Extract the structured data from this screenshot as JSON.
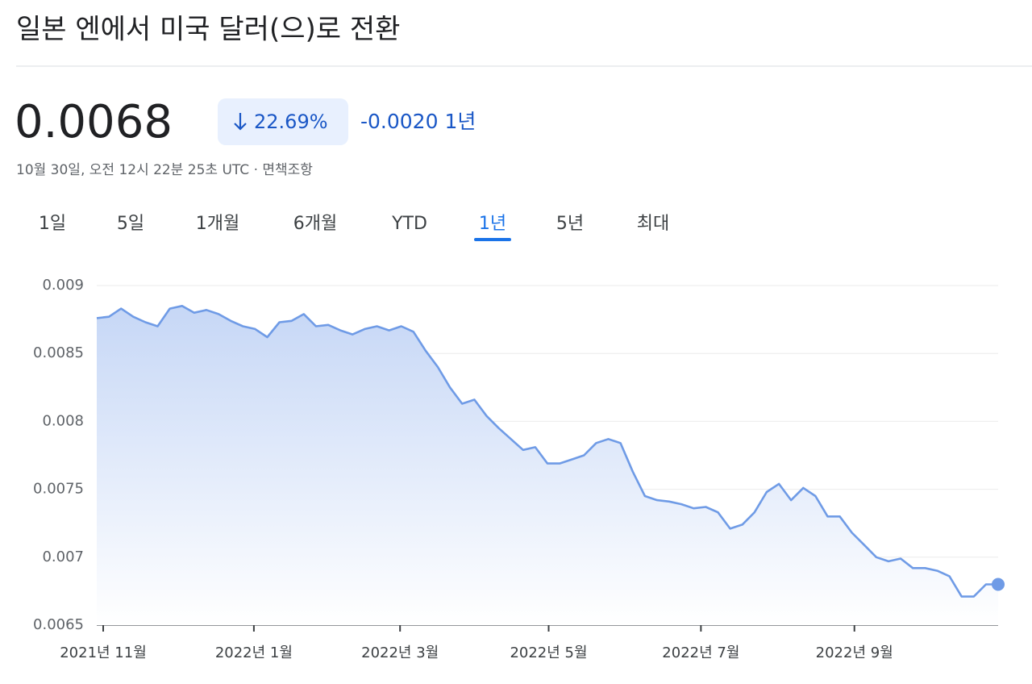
{
  "header": {
    "title": "일본 엔에서 미국 달러(으)로 전환",
    "price": "0.0068",
    "change_percent": "22.69%",
    "change_abs": "-0.0020 1년",
    "timestamp": "10월 30일, 오전 12시 22분 25초 UTC · 면책조항"
  },
  "tabs": {
    "items": [
      "1일",
      "5일",
      "1개월",
      "6개월",
      "YTD",
      "1년",
      "5년",
      "최대"
    ],
    "selected": 5
  },
  "chart_data": {
    "type": "line",
    "color": "#6f9be6",
    "values": [
      0.00876,
      0.00877,
      0.00883,
      0.00877,
      0.00873,
      0.0087,
      0.00883,
      0.00885,
      0.0088,
      0.00882,
      0.00879,
      0.00874,
      0.0087,
      0.00868,
      0.00862,
      0.00873,
      0.00874,
      0.00879,
      0.0087,
      0.00871,
      0.00867,
      0.00864,
      0.00868,
      0.0087,
      0.00867,
      0.0087,
      0.00866,
      0.00852,
      0.0084,
      0.00825,
      0.00813,
      0.00816,
      0.00804,
      0.00795,
      0.00787,
      0.00779,
      0.00781,
      0.00769,
      0.00769,
      0.00772,
      0.00775,
      0.00784,
      0.00787,
      0.00784,
      0.00763,
      0.00745,
      0.00742,
      0.00741,
      0.00739,
      0.00736,
      0.00737,
      0.00733,
      0.00721,
      0.00724,
      0.00733,
      0.00748,
      0.00754,
      0.00742,
      0.00751,
      0.00745,
      0.0073,
      0.0073,
      0.00718,
      0.00709,
      0.007,
      0.00697,
      0.00699,
      0.00692,
      0.00692,
      0.0069,
      0.00686,
      0.00671,
      0.00671,
      0.0068,
      0.0068
    ],
    "xlim": [
      0,
      74
    ],
    "xticks": [
      {
        "value": 0.53,
        "label": "2021년 11월"
      },
      {
        "value": 12.9,
        "label": "2022년 1월"
      },
      {
        "value": 24.9,
        "label": "2022년 3월"
      },
      {
        "value": 37.1,
        "label": "2022년 5월"
      },
      {
        "value": 49.6,
        "label": "2022년 7월"
      },
      {
        "value": 62.2,
        "label": "2022년 9월"
      }
    ],
    "ylim": [
      0.0065,
      0.009
    ],
    "yticks": [
      0.0065,
      0.007,
      0.0075,
      0.008,
      0.0085,
      0.009
    ],
    "grid": true
  }
}
